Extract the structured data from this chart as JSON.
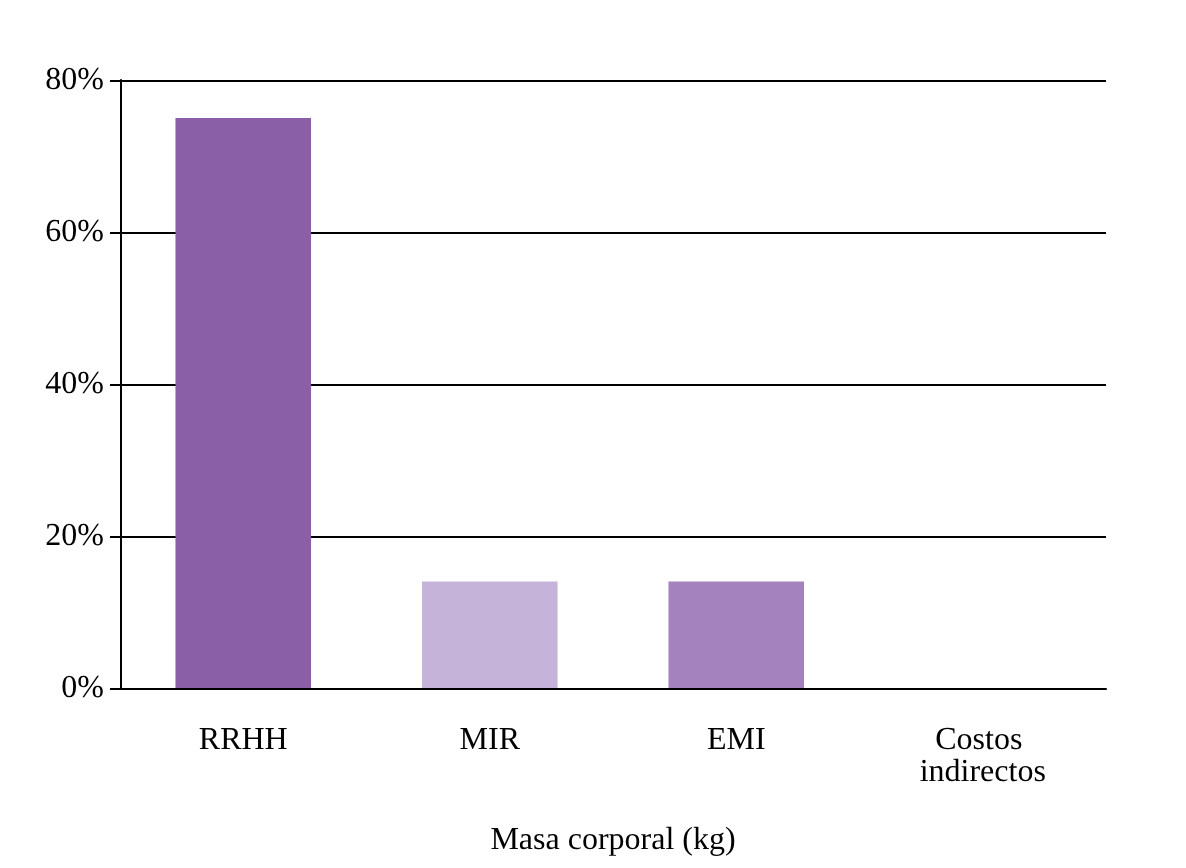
{
  "chart_data": {
    "type": "bar",
    "xlabel": "Masa corporal (kg)",
    "categories": [
      "RRHH",
      "MIR",
      "EMI",
      "Costos indirectos"
    ],
    "values": [
      75,
      14,
      14,
      0
    ],
    "colors": [
      "#8b5ea8",
      "#c5b3da",
      "#a382be",
      "#7030a0"
    ],
    "ylim": [
      0,
      80
    ],
    "yticks": [
      {
        "value": 0,
        "label": "0%"
      },
      {
        "value": 20,
        "label": "20%"
      },
      {
        "value": 40,
        "label": "40%"
      },
      {
        "value": 60,
        "label": "60%"
      },
      {
        "value": 80,
        "label": "80%"
      }
    ],
    "grid": "y"
  }
}
